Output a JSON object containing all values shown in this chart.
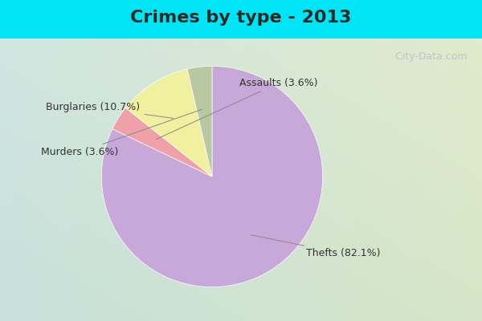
{
  "title": "Crimes by type - 2013",
  "slices": [
    {
      "label": "Thefts",
      "pct": 82.1,
      "color": "#C8A8D8"
    },
    {
      "label": "Assaults",
      "pct": 3.6,
      "color": "#F0A0A8"
    },
    {
      "label": "Burglaries",
      "pct": 10.7,
      "color": "#F0F0A0"
    },
    {
      "label": "Murders",
      "pct": 3.6,
      "color": "#B8C8A0"
    }
  ],
  "bg_cyan": "#00E5F5",
  "bg_main_topleft": "#C8E8E0",
  "bg_main_bottomright": "#D8ECD0",
  "title_fontsize": 16,
  "label_fontsize": 9,
  "watermark": " City-Data.com",
  "title_color": "#2a2a2a",
  "label_color": "#333333",
  "title_bar_height": 0.12
}
